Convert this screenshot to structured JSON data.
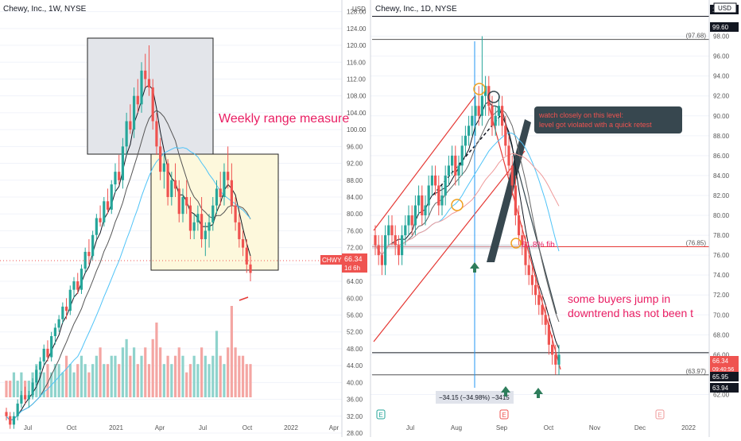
{
  "colors": {
    "up": "#26a69a",
    "down": "#ef5350",
    "vol_up": "#8fd3cc",
    "vol_down": "#f4a6a3",
    "grid": "#f0f3fa",
    "axis_text": "#555555",
    "price_tag": "#ef5350",
    "annotation_red": "#e91e63",
    "note_bg": "#37474f"
  },
  "panels": [
    {
      "title": "Chewy, Inc., 1W, NYSE",
      "annotation": "Weekly range measure",
      "price_tag": {
        "value": "66.34",
        "countdown": "1d 6h"
      },
      "price_axis": [
        "128.00",
        "124.00",
        "120.00",
        "116.00",
        "112.00",
        "108.00",
        "104.00",
        "100.00",
        "96.00",
        "92.00",
        "88.00",
        "84.00",
        "80.00",
        "76.00",
        "72.00",
        "68.00",
        "64.00",
        "60.00",
        "56.00",
        "52.00",
        "48.00",
        "44.00",
        "40.00",
        "36.00",
        "32.00",
        "28.00"
      ],
      "time_axis": [
        "Jul",
        "Oct",
        "2021",
        "Apr",
        "Jul",
        "Oct",
        "2022",
        "Apr"
      ]
    },
    {
      "title": "Chewy, Inc., 1D, NYSE",
      "currency_left": "USD",
      "currency_right": "USD",
      "annotation_right": "some buyers jump in",
      "annotation_right2": "downtrend has not been t",
      "note": "watch closely on this level:",
      "note2": "level got violated with a quick retest",
      "fib_label": "61.8% fib",
      "measure_label": "−34.15 (−34.98%) −3415",
      "levels": [
        {
          "label": "(97.68)",
          "value": 97.68
        },
        {
          "label": "(76.85)",
          "value": 76.85
        },
        {
          "label": "(63.97)",
          "value": 63.97
        }
      ],
      "right_tags": [
        {
          "label": "100.00",
          "kind": "black"
        },
        {
          "label": "99.60",
          "kind": "black"
        },
        {
          "label": "66.34",
          "kind": "red",
          "sub": "09:40:56"
        },
        {
          "label": "65.95",
          "kind": "black"
        },
        {
          "label": "63.94",
          "kind": "black"
        }
      ],
      "price_axis": [
        "98.00",
        "96.00",
        "94.00",
        "92.00",
        "90.00",
        "88.00",
        "86.00",
        "84.00",
        "82.00",
        "80.00",
        "78.00",
        "76.00",
        "74.00",
        "72.00",
        "70.00",
        "68.00",
        "66.00",
        "64.00",
        "62.00"
      ],
      "time_axis": [
        "Jul",
        "Aug",
        "Sep",
        "Oct",
        "Nov",
        "Dec",
        "2022"
      ],
      "event_badges": [
        "E",
        "E",
        "E"
      ]
    }
  ],
  "chart_data": [
    {
      "type": "candlestick",
      "title": "Chewy, Inc., 1W, NYSE",
      "ylim": [
        28,
        130
      ],
      "x_labels": [
        "Jul",
        "Oct",
        "2021",
        "Apr",
        "Jul",
        "Oct",
        "2022",
        "Apr"
      ],
      "candles": [
        [
          33,
          34,
          31,
          32
        ],
        [
          32,
          33,
          29,
          30
        ],
        [
          30,
          33,
          29,
          32
        ],
        [
          32,
          36,
          31,
          35
        ],
        [
          35,
          38,
          34,
          37
        ],
        [
          37,
          39,
          35,
          36
        ],
        [
          36,
          38,
          34,
          37
        ],
        [
          37,
          41,
          36,
          40
        ],
        [
          40,
          44,
          39,
          43
        ],
        [
          43,
          46,
          42,
          45
        ],
        [
          45,
          49,
          44,
          48
        ],
        [
          48,
          50,
          45,
          46
        ],
        [
          46,
          52,
          45,
          51
        ],
        [
          51,
          54,
          49,
          53
        ],
        [
          53,
          56,
          52,
          55
        ],
        [
          55,
          59,
          54,
          58
        ],
        [
          58,
          60,
          55,
          57
        ],
        [
          57,
          63,
          56,
          62
        ],
        [
          62,
          65,
          60,
          64
        ],
        [
          64,
          66,
          61,
          62
        ],
        [
          62,
          68,
          61,
          67
        ],
        [
          67,
          72,
          66,
          71
        ],
        [
          71,
          74,
          68,
          70
        ],
        [
          70,
          76,
          69,
          75
        ],
        [
          75,
          80,
          74,
          79
        ],
        [
          79,
          82,
          77,
          78
        ],
        [
          78,
          84,
          77,
          83
        ],
        [
          83,
          86,
          80,
          81
        ],
        [
          81,
          88,
          80,
          87
        ],
        [
          87,
          92,
          85,
          90
        ],
        [
          90,
          94,
          87,
          88
        ],
        [
          88,
          98,
          86,
          96
        ],
        [
          96,
          104,
          94,
          102
        ],
        [
          102,
          106,
          99,
          100
        ],
        [
          100,
          110,
          98,
          108
        ],
        [
          108,
          112,
          104,
          106
        ],
        [
          106,
          116,
          104,
          114
        ],
        [
          114,
          118,
          110,
          112
        ],
        [
          112,
          120,
          108,
          110
        ],
        [
          110,
          112,
          100,
          102
        ],
        [
          102,
          104,
          94,
          96
        ],
        [
          96,
          98,
          88,
          90
        ],
        [
          90,
          94,
          86,
          92
        ],
        [
          92,
          93,
          82,
          84
        ],
        [
          84,
          90,
          82,
          88
        ],
        [
          88,
          92,
          84,
          86
        ],
        [
          86,
          88,
          78,
          80
        ],
        [
          80,
          86,
          78,
          84
        ],
        [
          84,
          88,
          80,
          82
        ],
        [
          82,
          84,
          74,
          76
        ],
        [
          76,
          80,
          74,
          78
        ],
        [
          78,
          82,
          76,
          80
        ],
        [
          80,
          84,
          72,
          74
        ],
        [
          74,
          78,
          70,
          76
        ],
        [
          76,
          80,
          72,
          78
        ],
        [
          78,
          84,
          76,
          82
        ],
        [
          82,
          88,
          80,
          86
        ],
        [
          86,
          90,
          82,
          84
        ],
        [
          84,
          92,
          82,
          90
        ],
        [
          90,
          96,
          86,
          88
        ],
        [
          88,
          92,
          80,
          82
        ],
        [
          82,
          84,
          76,
          78
        ],
        [
          78,
          80,
          72,
          74
        ],
        [
          74,
          76,
          70,
          72
        ],
        [
          72,
          74,
          66,
          68
        ],
        [
          68,
          70,
          64,
          66
        ]
      ],
      "volume": [
        2,
        2,
        3,
        2,
        3,
        2,
        2,
        3,
        4,
        3,
        3,
        4,
        3,
        4,
        4,
        3,
        5,
        4,
        3,
        4,
        5,
        4,
        3,
        4,
        5,
        6,
        4,
        4,
        5,
        5,
        4,
        6,
        7,
        5,
        6,
        4,
        5,
        6,
        4,
        7,
        9,
        6,
        4,
        5,
        4,
        5,
        6,
        5,
        3,
        4,
        5,
        4,
        6,
        5,
        4,
        5,
        8,
        5,
        4,
        6,
        11,
        6,
        5,
        5,
        4,
        4
      ]
    },
    {
      "type": "candlestick",
      "title": "Chewy, Inc., 1D, NYSE",
      "ylim": [
        60.6,
        101
      ],
      "x_labels": [
        "Jul",
        "Aug",
        "Sep",
        "Oct",
        "Nov",
        "Dec",
        "2022"
      ],
      "levels": [
        97.68,
        76.85,
        63.97
      ],
      "candles": [
        [
          78,
          79,
          76,
          77
        ],
        [
          77,
          78,
          75,
          76
        ],
        [
          76,
          78,
          74,
          75
        ],
        [
          75,
          79,
          74,
          78
        ],
        [
          78,
          80,
          77,
          79
        ],
        [
          79,
          80,
          77,
          78
        ],
        [
          78,
          79,
          76,
          77
        ],
        [
          77,
          78,
          75,
          76
        ],
        [
          76,
          79,
          75,
          78
        ],
        [
          78,
          80,
          77,
          79
        ],
        [
          79,
          81,
          78,
          80
        ],
        [
          80,
          81,
          78,
          79
        ],
        [
          79,
          82,
          78,
          81
        ],
        [
          81,
          83,
          80,
          82
        ],
        [
          82,
          83,
          79,
          80
        ],
        [
          80,
          82,
          79,
          81
        ],
        [
          81,
          84,
          80,
          83
        ],
        [
          83,
          85,
          82,
          84
        ],
        [
          84,
          85,
          82,
          83
        ],
        [
          83,
          84,
          80,
          81
        ],
        [
          81,
          83,
          80,
          82
        ],
        [
          82,
          85,
          81,
          84
        ],
        [
          84,
          86,
          83,
          85
        ],
        [
          85,
          87,
          84,
          86
        ],
        [
          86,
          87,
          83,
          84
        ],
        [
          84,
          86,
          83,
          85
        ],
        [
          85,
          88,
          84,
          87
        ],
        [
          87,
          89,
          86,
          88
        ],
        [
          88,
          90,
          87,
          89
        ],
        [
          89,
          91,
          88,
          90
        ],
        [
          90,
          92,
          88,
          91
        ],
        [
          91,
          93,
          89,
          90
        ],
        [
          90,
          98,
          89,
          92
        ],
        [
          92,
          94,
          90,
          93
        ],
        [
          93,
          94,
          90,
          91
        ],
        [
          91,
          92,
          88,
          89
        ],
        [
          89,
          91,
          88,
          90
        ],
        [
          90,
          92,
          89,
          91
        ],
        [
          91,
          92,
          88,
          89
        ],
        [
          89,
          90,
          86,
          87
        ],
        [
          87,
          88,
          84,
          85
        ],
        [
          85,
          86,
          82,
          83
        ],
        [
          83,
          84,
          79,
          80
        ],
        [
          80,
          81,
          77,
          78
        ],
        [
          78,
          79,
          76,
          77
        ],
        [
          77,
          78,
          74,
          75
        ],
        [
          75,
          76,
          73,
          74
        ],
        [
          74,
          75,
          72,
          73
        ],
        [
          73,
          74,
          71,
          72
        ],
        [
          72,
          73,
          70,
          71
        ],
        [
          71,
          72,
          69,
          70
        ],
        [
          70,
          71,
          68,
          69
        ],
        [
          69,
          70,
          66,
          67
        ],
        [
          67,
          68,
          65,
          66
        ],
        [
          66,
          67,
          64,
          65
        ],
        [
          65,
          67,
          64,
          66
        ]
      ]
    }
  ]
}
